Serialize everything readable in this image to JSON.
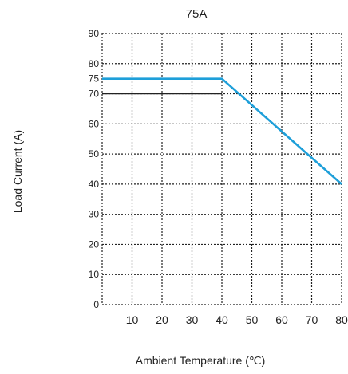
{
  "chart_data": {
    "type": "line",
    "title": "75A",
    "xlabel": "Ambient Temperature  (℃)",
    "ylabel": "Load Current (A)",
    "xlim": [
      0,
      80
    ],
    "ylim": [
      0,
      90
    ],
    "x_ticks": [
      10,
      20,
      30,
      40,
      50,
      60,
      70,
      80
    ],
    "y_ticks": [
      0,
      10,
      20,
      30,
      40,
      50,
      60,
      70,
      75,
      80,
      90
    ],
    "grid": true,
    "series": [
      {
        "x": [
          0,
          40,
          80
        ],
        "y": [
          75,
          75,
          40
        ],
        "color": "#1e9fd9"
      }
    ],
    "reference_line": {
      "x": [
        0,
        40
      ],
      "y": [
        70,
        70
      ]
    }
  }
}
